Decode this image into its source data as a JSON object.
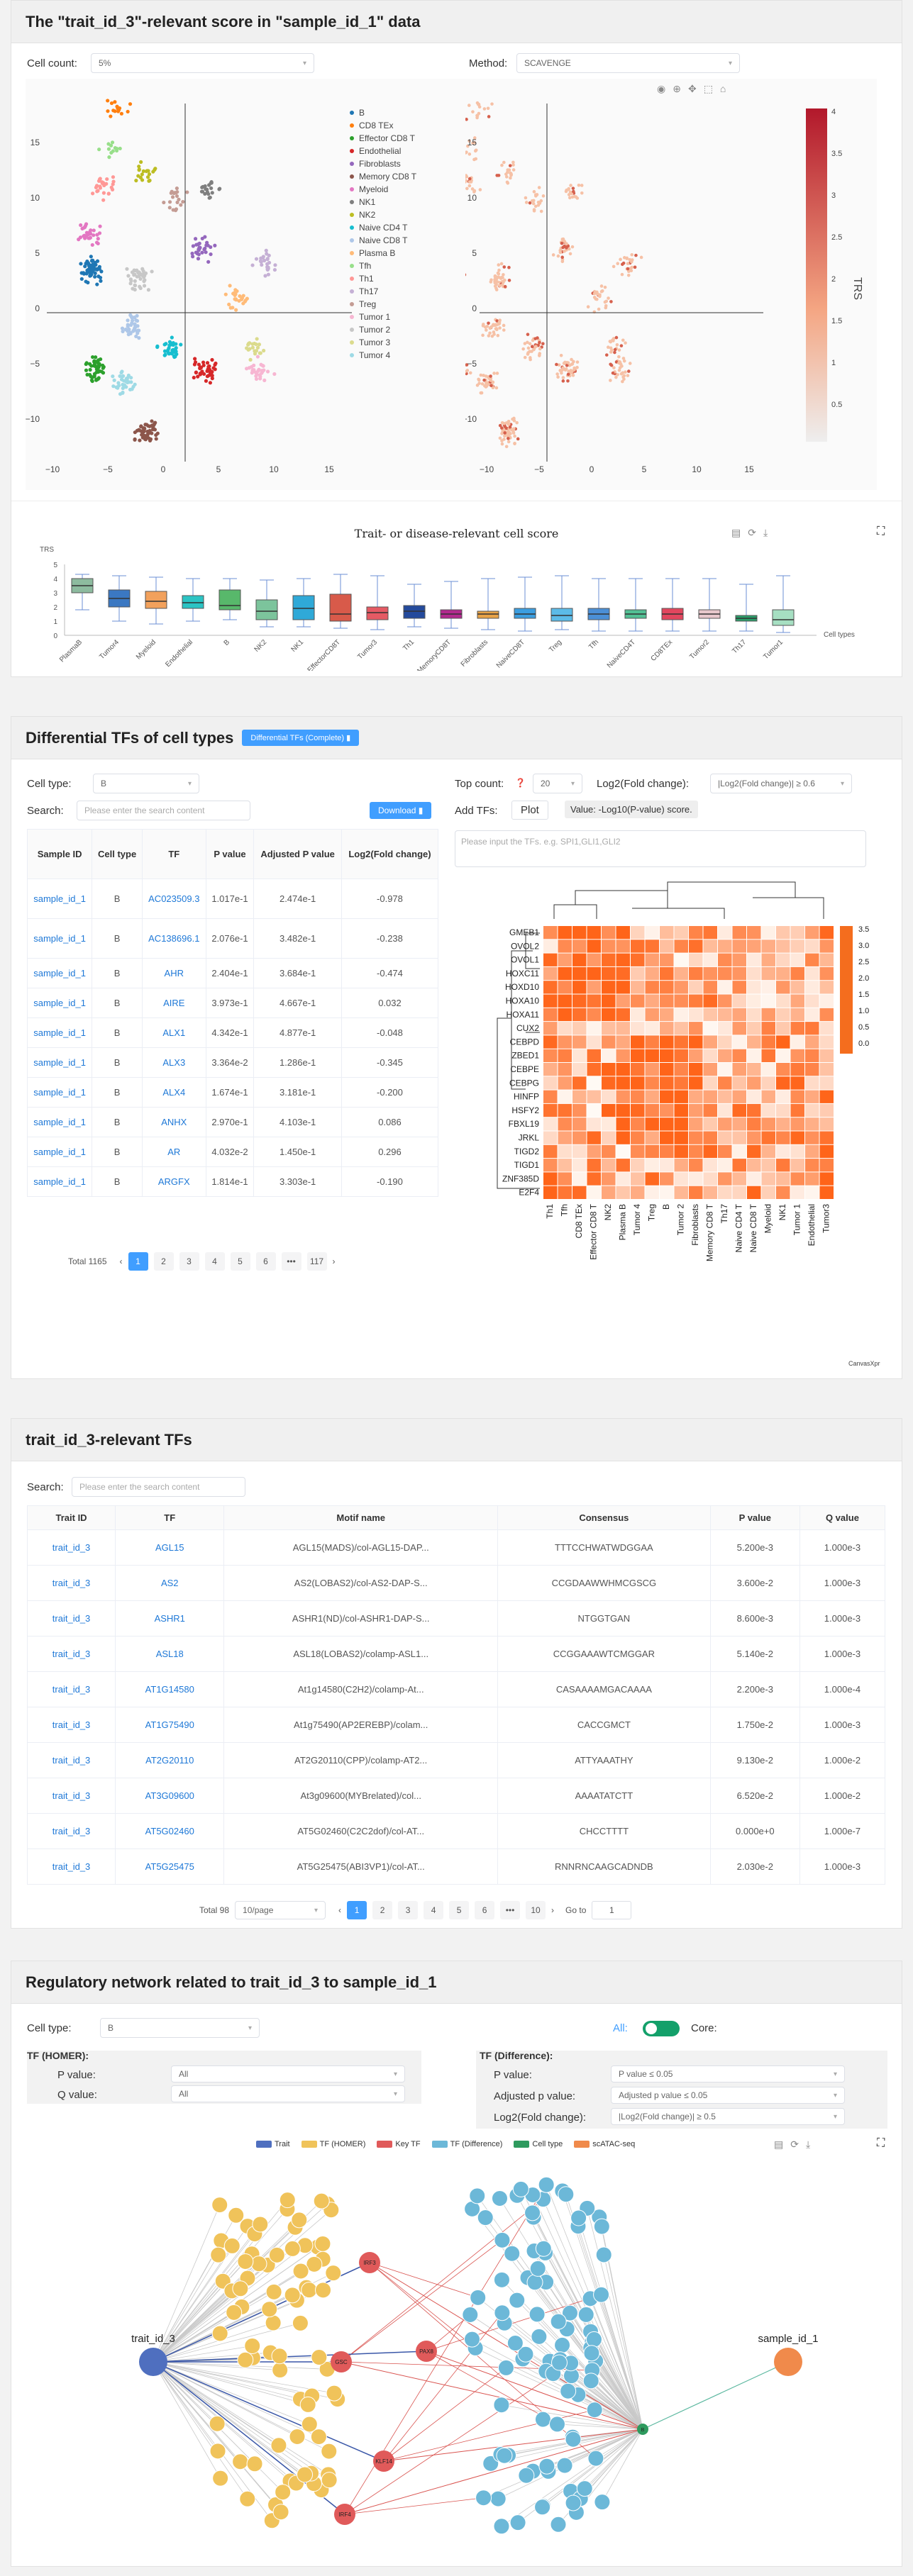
{
  "panel1": {
    "title": "The \"trait_id_3\"-relevant score in \"sample_id_1\" data",
    "cell_count_label": "Cell count:",
    "cell_count_value": "5%",
    "method_label": "Method:",
    "method_value": "SCAVENGE",
    "legend": [
      "B",
      "CD8 TEx",
      "Effector CD8 T",
      "Endothelial",
      "Fibroblasts",
      "Memory CD8 T",
      "Myeloid",
      "NK1",
      "NK2",
      "Naive CD4 T",
      "Naive CD8 T",
      "Plasma B",
      "Tfh",
      "Th1",
      "Th17",
      "Treg",
      "Tumor 1",
      "Tumor 2",
      "Tumor 3",
      "Tumor 4"
    ],
    "legend_colors": [
      "#1f77b4",
      "#ff7f0e",
      "#2ca02c",
      "#d62728",
      "#9467bd",
      "#8c564b",
      "#e377c2",
      "#7f7f7f",
      "#bcbd22",
      "#17becf",
      "#aec7e8",
      "#ffbb78",
      "#98df8a",
      "#ff9896",
      "#c5b0d5",
      "#c49c94",
      "#f7b6d2",
      "#c7c7c7",
      "#dbdb8d",
      "#9edae5"
    ],
    "x_ticks": [
      "−10",
      "−5",
      "0",
      "5",
      "10",
      "15"
    ],
    "y_ticks": [
      "15",
      "10",
      "5",
      "0",
      "−5",
      "−10"
    ],
    "colorbar_label": "TRS",
    "colorbar_ticks": [
      "4",
      "3.5",
      "3",
      "2.5",
      "2",
      "1.5",
      "1",
      "0.5"
    ],
    "box_title": "Trait- or disease-relevant cell score",
    "box_ylabel": "TRS",
    "box_xlabel": "Cell types",
    "box_yticks": [
      "5",
      "4",
      "3",
      "2",
      "1",
      "0"
    ],
    "box_categories": [
      "PlasmaB",
      "Tumor4",
      "Myeloid",
      "Endothelial",
      "B",
      "NK2",
      "NK1",
      "EffectorCD8T",
      "Tumor3",
      "Th1",
      "MemoryCD8T",
      "Fibroblasts",
      "NaiveCD8T",
      "Treg",
      "Tfh",
      "NaiveCD4T",
      "CD8TEx",
      "Tumor2",
      "Th17",
      "Tumor1"
    ],
    "box_colors": [
      "#8dbb9f",
      "#3b78c2",
      "#f2a15c",
      "#2bc4c4",
      "#58b86b",
      "#7cc49c",
      "#2fa9d8",
      "#d85a4a",
      "#e55a64",
      "#244a9c",
      "#b22a8e",
      "#e8a347",
      "#3c9ee0",
      "#5cbbe8",
      "#4b8fd6",
      "#52c094",
      "#e2465e",
      "#e8c8cc",
      "#2a9e6a",
      "#a6dfc2"
    ]
  },
  "chart_data": {
    "type": "box",
    "title": "Trait- or disease-relevant cell score",
    "ylabel": "TRS",
    "xlabel": "Cell types",
    "ylim": [
      0,
      5
    ],
    "categories": [
      "PlasmaB",
      "Tumor4",
      "Myeloid",
      "Endothelial",
      "B",
      "NK2",
      "NK1",
      "EffectorCD8T",
      "Tumor3",
      "Th1",
      "MemoryCD8T",
      "Fibroblasts",
      "NaiveCD8T",
      "Treg",
      "Tfh",
      "NaiveCD4T",
      "CD8TEx",
      "Tumor2",
      "Th17",
      "Tumor1"
    ],
    "series": [
      {
        "min": [
          1.8,
          1.0,
          0.8,
          1.0,
          1.1,
          0.6,
          0.6,
          0.5,
          0.4,
          0.6,
          0.5,
          0.4,
          0.3,
          0.4,
          0.3,
          0.3,
          0.3,
          0.3,
          0.3,
          0.2
        ],
        "q1": [
          3.0,
          2.0,
          1.9,
          1.9,
          1.8,
          1.1,
          1.1,
          1.0,
          1.1,
          1.2,
          1.2,
          1.2,
          1.2,
          1.0,
          1.1,
          1.2,
          1.1,
          1.2,
          1.0,
          0.7
        ],
        "median": [
          3.5,
          2.6,
          2.4,
          2.3,
          2.1,
          1.7,
          1.9,
          1.5,
          1.6,
          1.7,
          1.5,
          1.5,
          1.5,
          1.4,
          1.5,
          1.5,
          1.5,
          1.5,
          1.2,
          1.1
        ],
        "q3": [
          4.0,
          3.2,
          3.1,
          2.8,
          3.2,
          2.5,
          2.8,
          2.9,
          2.0,
          2.1,
          1.8,
          1.7,
          1.9,
          1.9,
          1.9,
          1.8,
          1.9,
          1.8,
          1.4,
          1.8
        ],
        "max": [
          4.3,
          4.2,
          4.1,
          4.0,
          4.0,
          3.9,
          4.0,
          4.3,
          4.2,
          3.6,
          3.8,
          4.0,
          4.1,
          4.2,
          4.0,
          4.0,
          4.0,
          4.0,
          3.6,
          4.2
        ]
      }
    ]
  },
  "panel2": {
    "title": "Differential TFs of cell types",
    "badge": "Differential TFs (Complete)",
    "cell_type_label": "Cell type:",
    "cell_type_value": "B",
    "top_count_label": "Top count:",
    "top_count_value": "20",
    "log2fc_label": "Log2(Fold change):",
    "log2fc_value": "|Log2(Fold change)| ≥ 0.6",
    "add_tfs_label": "Add TFs:",
    "plot_label": "Plot",
    "value_label": "Value: -Log10(P-value) score.",
    "tf_placeholder": "Please input the TFs. e.g. SPI1,GLI1,GLI2",
    "search_label": "Search:",
    "search_placeholder": "Please enter the search content",
    "download": "Download",
    "columns": [
      "Sample ID",
      "Cell type",
      "TF",
      "P value",
      "Adjusted P value",
      "Log2(Fold change)"
    ],
    "rows": [
      [
        "sample_id_1",
        "B",
        "AC023509.3",
        "1.017e-1",
        "2.474e-1",
        "-0.978"
      ],
      [
        "sample_id_1",
        "B",
        "AC138696.1",
        "2.076e-1",
        "3.482e-1",
        "-0.238"
      ],
      [
        "sample_id_1",
        "B",
        "AHR",
        "2.404e-1",
        "3.684e-1",
        "-0.474"
      ],
      [
        "sample_id_1",
        "B",
        "AIRE",
        "3.973e-1",
        "4.667e-1",
        "0.032"
      ],
      [
        "sample_id_1",
        "B",
        "ALX1",
        "4.342e-1",
        "4.877e-1",
        "-0.048"
      ],
      [
        "sample_id_1",
        "B",
        "ALX3",
        "3.364e-2",
        "1.286e-1",
        "-0.345"
      ],
      [
        "sample_id_1",
        "B",
        "ALX4",
        "1.674e-1",
        "3.181e-1",
        "-0.200"
      ],
      [
        "sample_id_1",
        "B",
        "ANHX",
        "2.970e-1",
        "4.103e-1",
        "0.086"
      ],
      [
        "sample_id_1",
        "B",
        "AR",
        "4.032e-2",
        "1.450e-1",
        "0.296"
      ],
      [
        "sample_id_1",
        "B",
        "ARGFX",
        "1.814e-1",
        "3.303e-1",
        "-0.190"
      ]
    ],
    "total": "Total 1165",
    "pages": [
      "1",
      "2",
      "3",
      "4",
      "5",
      "6",
      "•••",
      "117"
    ],
    "heat_rows": [
      "GMEB1",
      "OVOL2",
      "OVOL1",
      "HOXC11",
      "HOXD10",
      "HOXA10",
      "HOXA11",
      "CUX2",
      "CEBPD",
      "ZBED1",
      "CEBPE",
      "CEBPG",
      "HINFP",
      "HSFY2",
      "FBXL19",
      "JRKL",
      "TIGD2",
      "TIGD1",
      "ZNF385D",
      "E2F4"
    ],
    "heat_cols": [
      "Th1",
      "Tfh",
      "CD8 TEx",
      "Effector CD8 T",
      "NK2",
      "Plasma B",
      "Tumor 4",
      "Treg",
      "B",
      "Tumor 2",
      "Fibroblasts",
      "Memory CD8 T",
      "Th17",
      "Naive CD4 T",
      "Naive CD8 T",
      "Myeloid",
      "NK1",
      "Tumor 1",
      "Endothelial",
      "Tumor3"
    ],
    "heat_scale": [
      "3.5",
      "3.0",
      "2.5",
      "2.0",
      "1.5",
      "1.0",
      "0.5",
      "0.0"
    ],
    "credit": "CanvasXpress"
  },
  "panel3": {
    "title": "trait_id_3-relevant TFs",
    "search_label": "Search:",
    "search_placeholder": "Please enter the search content",
    "columns": [
      "Trait ID",
      "TF",
      "Motif name",
      "Consensus",
      "P value",
      "Q value"
    ],
    "rows": [
      [
        "trait_id_3",
        "AGL15",
        "AGL15(MADS)/col-AGL15-DAP...",
        "TTTCCHWATWDGGAA",
        "5.200e-3",
        "1.000e-3"
      ],
      [
        "trait_id_3",
        "AS2",
        "AS2(LOBAS2)/col-AS2-DAP-S...",
        "CCGDAAWWHMCGSCG",
        "3.600e-2",
        "1.000e-3"
      ],
      [
        "trait_id_3",
        "ASHR1",
        "ASHR1(ND)/col-ASHR1-DAP-S...",
        "NTGGTGAN",
        "8.600e-3",
        "1.000e-3"
      ],
      [
        "trait_id_3",
        "ASL18",
        "ASL18(LOBAS2)/colamp-ASL1...",
        "CCGGAAAWTCMGGAR",
        "5.140e-2",
        "1.000e-3"
      ],
      [
        "trait_id_3",
        "AT1G14580",
        "At1g14580(C2H2)/colamp-At...",
        "CASAAAAMGACAAAA",
        "2.200e-3",
        "1.000e-4"
      ],
      [
        "trait_id_3",
        "AT1G75490",
        "At1g75490(AP2EREBP)/colam...",
        "CACCGMCT",
        "1.750e-2",
        "1.000e-3"
      ],
      [
        "trait_id_3",
        "AT2G20110",
        "AT2G20110(CPP)/colamp-AT2...",
        "ATTYAAATHY",
        "9.130e-2",
        "1.000e-2"
      ],
      [
        "trait_id_3",
        "AT3G09600",
        "At3g09600(MYBrelated)/col...",
        "AAAATATCTT",
        "6.520e-2",
        "1.000e-2"
      ],
      [
        "trait_id_3",
        "AT5G02460",
        "AT5G02460(C2C2dof)/col-AT...",
        "CHCCTTTT",
        "0.000e+0",
        "1.000e-7"
      ],
      [
        "trait_id_3",
        "AT5G25475",
        "AT5G25475(ABI3VP1)/col-AT...",
        "RNNRNCAAGCADNDB",
        "2.030e-2",
        "1.000e-3"
      ]
    ],
    "total": "Total 98",
    "per_page": "10/page",
    "pages": [
      "1",
      "2",
      "3",
      "4",
      "5",
      "6",
      "•••",
      "10"
    ],
    "goto_label": "Go to",
    "goto_value": "1"
  },
  "panel4": {
    "title": "Regulatory network related to trait_id_3 to sample_id_1",
    "cell_type_label": "Cell type:",
    "cell_type_value": "B",
    "all_label": "All:",
    "core_label": "Core:",
    "homer_title": "TF (HOMER):",
    "p_label": "P value:",
    "p_value": "All",
    "q_label": "Q value:",
    "q_value": "All",
    "diff_title": "TF (Difference):",
    "diff_p_label": "P value:",
    "diff_p_value": "P value ≤ 0.05",
    "adj_p_label": "Adjusted p value:",
    "adj_p_value": "Adjusted p value ≤ 0.05",
    "fc_label": "Log2(Fold change):",
    "fc_value": "|Log2(Fold change)| ≥ 0.5",
    "legend": [
      "Trait",
      "TF (HOMER)",
      "Key TF",
      "TF (Difference)",
      "Cell type",
      "scATAC-seq"
    ],
    "legend_colors": [
      "#4f6fbf",
      "#f0c35a",
      "#e05a5a",
      "#6cb8d8",
      "#2e9a5e",
      "#f08a4b"
    ],
    "trait_node": "trait_id_3",
    "sample_node": "sample_id_1",
    "key_tfs": [
      "IRF3",
      "GSC",
      "PAX8",
      "KLF14",
      "IRF4"
    ],
    "cell_node": "B"
  }
}
